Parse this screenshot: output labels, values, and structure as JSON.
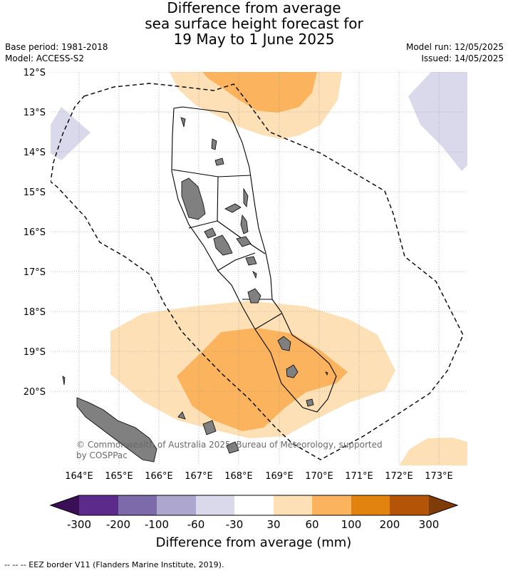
{
  "title": {
    "line1": "Difference from average",
    "line2": "sea surface height forecast for",
    "line3": "19 May to 1 June 2025"
  },
  "meta_left": {
    "base_period": "Base period: 1981-2018",
    "model": "Model: ACCESS-S2"
  },
  "meta_right": {
    "model_run": "Model run: 12/05/2025",
    "issued": "Issued: 14/05/2025"
  },
  "map": {
    "lat_labels": [
      "12°S",
      "13°S",
      "14°S",
      "15°S",
      "16°S",
      "17°S",
      "18°S",
      "19°S",
      "20°S"
    ],
    "lon_labels": [
      "164°E",
      "165°E",
      "166°E",
      "167°E",
      "168°E",
      "169°E",
      "170°E",
      "171°E",
      "172°E",
      "173°E"
    ],
    "copyright_line1": "© Commonwealth of Australia 2025, Bureau of Meteorology, supported",
    "copyright_line2": "by COSPPac"
  },
  "colorbar": {
    "tick_labels": [
      "-300",
      "-200",
      "-100",
      "-60",
      "-30",
      "30",
      "60",
      "100",
      "200",
      "300"
    ],
    "colors": [
      "#3b0f55",
      "#5b2a8a",
      "#7c6aab",
      "#ada7cf",
      "#d9d9eb",
      "#ffffff",
      "#fde0b5",
      "#fbb35e",
      "#e3830f",
      "#b35406",
      "#7f3b08"
    ],
    "label": "Difference from average (mm)"
  },
  "footer": "-- -- -- EEZ border V11 (Flanders Marine Institute, 2019)."
}
